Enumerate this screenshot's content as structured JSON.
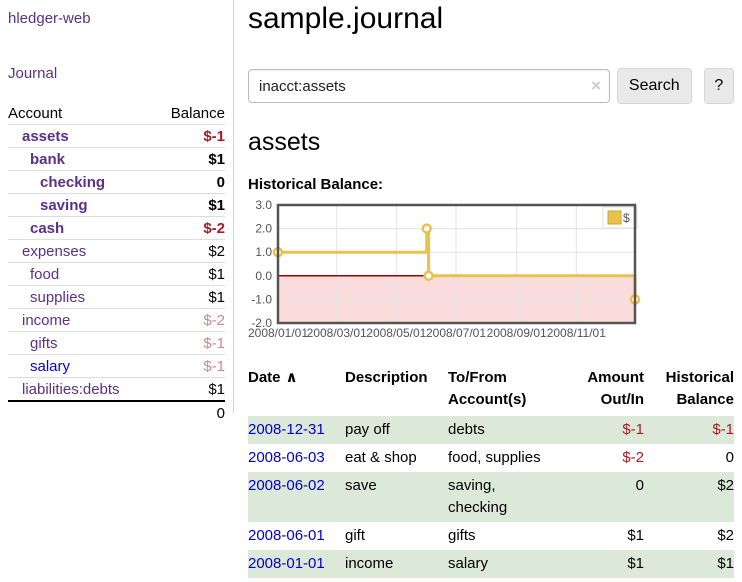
{
  "app": {
    "brand": "hledger-web"
  },
  "sidebar": {
    "journal_link": "Journal",
    "table": {
      "account_header": "Account",
      "balance_header": "Balance",
      "accounts": [
        {
          "name": "assets",
          "balance": "$-1",
          "indent": 1,
          "bold": true,
          "balance_style": "neg-strong",
          "link_style": "purple"
        },
        {
          "name": "bank",
          "balance": "$1",
          "indent": 2,
          "bold": true,
          "balance_style": "pos-strong",
          "link_style": "purple"
        },
        {
          "name": "checking",
          "balance": "0",
          "indent": 3,
          "bold": true,
          "balance_style": "pos-strong",
          "link_style": "purple"
        },
        {
          "name": "saving",
          "balance": "$1",
          "indent": 3,
          "bold": true,
          "balance_style": "pos-strong",
          "link_style": "purple"
        },
        {
          "name": "cash",
          "balance": "$-2",
          "indent": 2,
          "bold": true,
          "balance_style": "neg-strong",
          "link_style": "purple"
        },
        {
          "name": "expenses",
          "balance": "$2",
          "indent": 1,
          "bold": false,
          "balance_style": "pos",
          "link_style": "purple"
        },
        {
          "name": "food",
          "balance": "$1",
          "indent": 2,
          "bold": false,
          "balance_style": "pos",
          "link_style": "purple"
        },
        {
          "name": "supplies",
          "balance": "$1",
          "indent": 2,
          "bold": false,
          "balance_style": "pos",
          "link_style": "purple"
        },
        {
          "name": "income",
          "balance": "$-2",
          "indent": 1,
          "bold": false,
          "balance_style": "neg-soft",
          "link_style": "purple"
        },
        {
          "name": "gifts",
          "balance": "$-1",
          "indent": 2,
          "bold": false,
          "balance_style": "neg-soft",
          "link_style": "purple"
        },
        {
          "name": "salary",
          "balance": "$-1",
          "indent": 2,
          "bold": false,
          "balance_style": "neg-soft",
          "link_style": "blue"
        },
        {
          "name": "liabilities:debts",
          "balance": "$1",
          "indent": 1,
          "bold": false,
          "balance_style": "pos",
          "link_style": "purple"
        }
      ],
      "total": "0"
    }
  },
  "header": {
    "title": "sample.journal"
  },
  "search": {
    "value": "inacct:assets",
    "clear_icon": "×",
    "button_label": "Search",
    "help_label": "?"
  },
  "main": {
    "account_title": "assets",
    "chart_label": "Historical Balance:"
  },
  "chart_data": {
    "type": "line",
    "mode": "steps",
    "title": "Historical Balance",
    "series": [
      {
        "name": "$",
        "color": "#e8c24a",
        "points": [
          [
            "2008/01/01",
            1.0
          ],
          [
            "2008/06/01",
            2.0
          ],
          [
            "2008/06/03",
            0.0
          ],
          [
            "2008/12/31",
            -1.0
          ]
        ]
      }
    ],
    "yticks": [
      3.0,
      2.0,
      1.0,
      0.0,
      -1.0,
      -2.0
    ],
    "xticks": [
      "2008/01/01",
      "2008/03/01",
      "2008/05/01",
      "2008/07/01",
      "2008/09/01",
      "2008/11/01"
    ],
    "ylim": [
      -2.0,
      3.0
    ],
    "x_domain": [
      "2008/01/01",
      "2008/12/31"
    ],
    "legend": "$",
    "legend_position": "top-right",
    "grid": true,
    "negative_region_color": "#fbdcdc",
    "zero_line_color": "#990000",
    "border_color": "#545454"
  },
  "register": {
    "headers": {
      "date": "Date",
      "sort_icon": "∧",
      "description": "Description",
      "account": "To/From Account(s)",
      "amount": "Amount Out/In",
      "balance": "Historical Balance"
    },
    "rows": [
      {
        "date": "2008-12-31",
        "description": "pay off",
        "account": "debts",
        "amount": "$-1",
        "balance": "$-1",
        "amount_negative": true,
        "balance_negative": true
      },
      {
        "date": "2008-06-03",
        "description": "eat & shop",
        "account": "food, supplies",
        "amount": "$-2",
        "balance": "0",
        "amount_negative": true,
        "balance_negative": false
      },
      {
        "date": "2008-06-02",
        "description": "save",
        "account": "saving, checking",
        "amount": "0",
        "balance": "$2",
        "amount_negative": false,
        "balance_negative": false
      },
      {
        "date": "2008-06-01",
        "description": "gift",
        "account": "gifts",
        "amount": "$1",
        "balance": "$2",
        "amount_negative": false,
        "balance_negative": false
      },
      {
        "date": "2008-01-01",
        "description": "income",
        "account": "salary",
        "amount": "$1",
        "balance": "$1",
        "amount_negative": false,
        "balance_negative": false
      }
    ]
  }
}
